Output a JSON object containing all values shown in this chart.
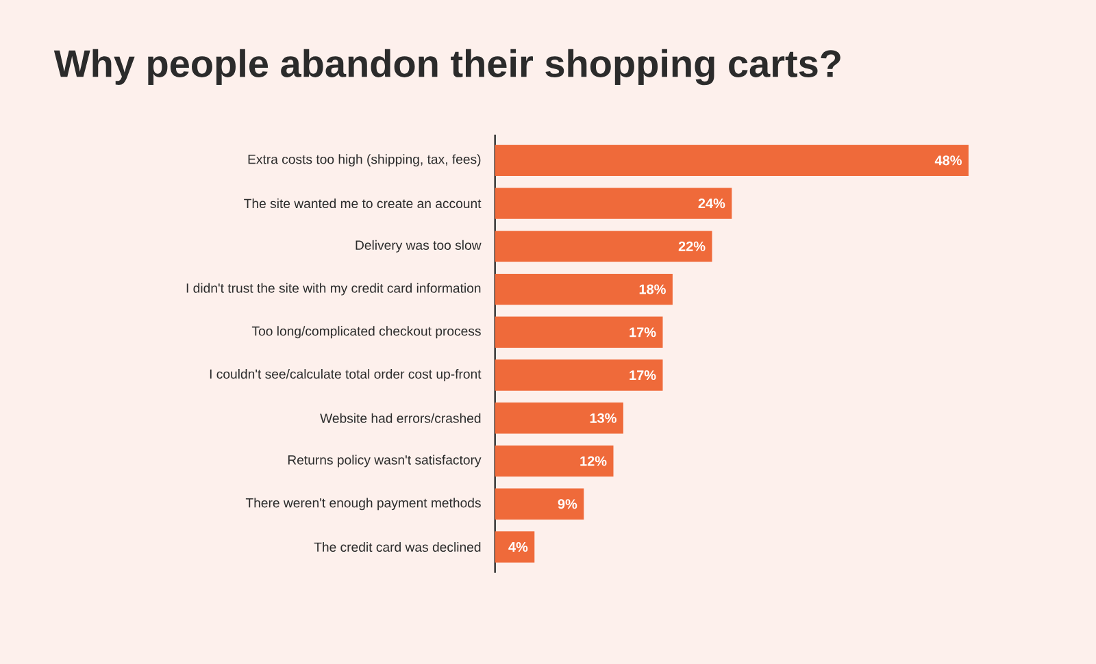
{
  "chart_data": {
    "type": "bar",
    "orientation": "horizontal",
    "title": "Why people abandon their shopping carts?",
    "categories": [
      "Extra costs too high (shipping, tax, fees)",
      "The site wanted me to create an account",
      "Delivery was too slow",
      "I didn't trust the site with my credit card information",
      "Too long/complicated checkout process",
      "I couldn't see/calculate total order cost up-front",
      "Website had errors/crashed",
      "Returns policy wasn't satisfactory",
      "There weren't enough payment methods",
      "The credit card was declined"
    ],
    "values": [
      48,
      24,
      22,
      18,
      17,
      17,
      13,
      12,
      9,
      4
    ],
    "value_labels": [
      "48%",
      "24%",
      "22%",
      "18%",
      "17%",
      "17%",
      "13%",
      "12%",
      "9%",
      "4%"
    ],
    "color": "#ef6a3a",
    "tick_labels": "y"
  }
}
